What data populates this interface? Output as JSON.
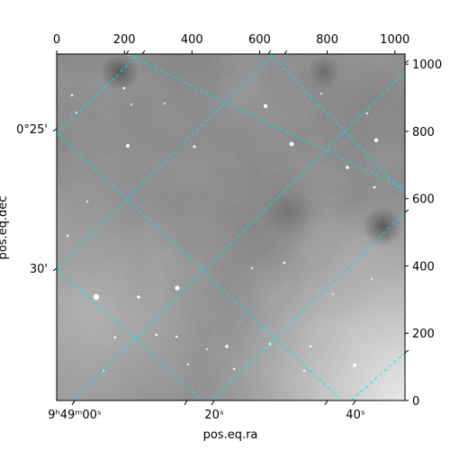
{
  "chart_data": {
    "type": "image",
    "xlabel": "pos.eq.ra",
    "ylabel": "pos.eq.dec",
    "pixel_axes": {
      "top": {
        "ticks": [
          0,
          200,
          400,
          600,
          800,
          1000
        ],
        "range": [
          0,
          1030
        ]
      },
      "right": {
        "ticks": [
          0,
          200,
          400,
          600,
          800,
          1000
        ],
        "range": [
          0,
          1030
        ]
      }
    },
    "world_axes": {
      "bottom_ra": {
        "ticks": [
          "9ʰ49ᵐ00ˢ",
          "20ˢ",
          "40ˢ"
        ]
      },
      "left_dec": {
        "ticks": [
          "0°25'",
          "30'"
        ]
      }
    },
    "grid": true,
    "grid_color": "#00e5e5",
    "colormap": "gray"
  }
}
